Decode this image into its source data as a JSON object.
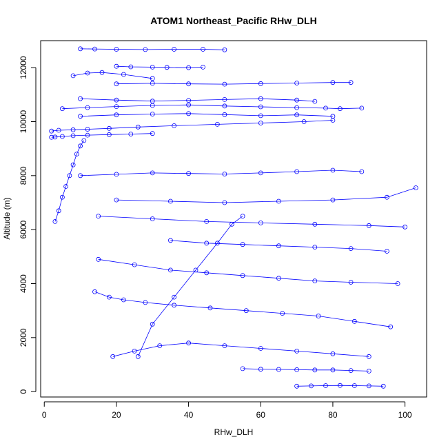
{
  "chart_data": {
    "type": "scatter",
    "title": "ATOM1 Northeast_Pacific RHw_DLH",
    "xlabel": "RHw_DLH",
    "ylabel": "Altitude (m)",
    "xlim": [
      -1,
      106
    ],
    "ylim": [
      -200,
      13000
    ],
    "x_ticks": [
      0,
      20,
      40,
      60,
      80,
      100
    ],
    "y_ticks": [
      0,
      2000,
      4000,
      6000,
      8000,
      10000,
      12000
    ],
    "x_tick_labels": [
      "0",
      "20",
      "40",
      "60",
      "80",
      "100"
    ],
    "y_tick_labels": [
      "0",
      "2000",
      "4000",
      "6000",
      "8000",
      "10000",
      "12000"
    ],
    "grid": false,
    "legend": "none",
    "series_color": "#0000ff",
    "marker": "open-circle",
    "connected": true,
    "series": [
      {
        "x": [
          10,
          14,
          20,
          28,
          36,
          44,
          50
        ],
        "y": [
          12700,
          12690,
          12680,
          12670,
          12680,
          12680,
          12660
        ]
      },
      {
        "x": [
          20,
          24,
          30,
          34,
          40,
          44
        ],
        "y": [
          12050,
          12030,
          12020,
          12010,
          12000,
          12020
        ]
      },
      {
        "x": [
          8,
          12,
          16,
          22,
          30
        ],
        "y": [
          11700,
          11800,
          11820,
          11750,
          11600
        ]
      },
      {
        "x": [
          20,
          30,
          40,
          50,
          60,
          70,
          80,
          85
        ],
        "y": [
          11400,
          11420,
          11400,
          11390,
          11410,
          11430,
          11450,
          11450
        ]
      },
      {
        "x": [
          10,
          20,
          30,
          40,
          50,
          60,
          70,
          75
        ],
        "y": [
          10850,
          10800,
          10760,
          10790,
          10820,
          10850,
          10800,
          10750
        ]
      },
      {
        "x": [
          5,
          12,
          20,
          30,
          40,
          50,
          60,
          70,
          78,
          82,
          88
        ],
        "y": [
          10480,
          10520,
          10560,
          10600,
          10620,
          10580,
          10550,
          10520,
          10500,
          10480,
          10500
        ]
      },
      {
        "x": [
          10,
          20,
          30,
          40,
          50,
          60,
          70,
          80
        ],
        "y": [
          10200,
          10250,
          10280,
          10300,
          10260,
          10220,
          10250,
          10200
        ]
      },
      {
        "x": [
          2,
          4,
          8,
          12,
          18,
          26,
          36,
          48,
          60,
          72,
          80
        ],
        "y": [
          9650,
          9680,
          9700,
          9720,
          9750,
          9800,
          9850,
          9900,
          9950,
          10000,
          10050
        ]
      },
      {
        "x": [
          2,
          3,
          5,
          8,
          12,
          18,
          24,
          30
        ],
        "y": [
          9420,
          9430,
          9450,
          9480,
          9500,
          9520,
          9540,
          9560
        ]
      },
      {
        "x": [
          3,
          4,
          5,
          6,
          7,
          8,
          9,
          10,
          11
        ],
        "y": [
          6300,
          6700,
          7200,
          7600,
          8000,
          8400,
          8800,
          9100,
          9300
        ]
      },
      {
        "x": [
          10,
          20,
          30,
          40,
          50,
          60,
          70,
          80,
          88
        ],
        "y": [
          8000,
          8050,
          8100,
          8080,
          8060,
          8100,
          8150,
          8200,
          8150
        ]
      },
      {
        "x": [
          20,
          35,
          50,
          65,
          80,
          95,
          103
        ],
        "y": [
          7100,
          7050,
          7000,
          7050,
          7100,
          7200,
          7550
        ]
      },
      {
        "x": [
          15,
          30,
          45,
          60,
          75,
          90,
          100
        ],
        "y": [
          6500,
          6400,
          6300,
          6250,
          6200,
          6150,
          6100
        ]
      },
      {
        "x": [
          35,
          45,
          55,
          65,
          75,
          85,
          95
        ],
        "y": [
          5600,
          5500,
          5450,
          5400,
          5350,
          5300,
          5200
        ]
      },
      {
        "x": [
          15,
          25,
          35,
          45,
          55,
          65,
          75,
          85,
          98
        ],
        "y": [
          4900,
          4700,
          4500,
          4400,
          4300,
          4200,
          4100,
          4050,
          4000
        ]
      },
      {
        "x": [
          14,
          18,
          22,
          28,
          36,
          46,
          56,
          66,
          76,
          86,
          96
        ],
        "y": [
          3700,
          3500,
          3400,
          3300,
          3200,
          3100,
          3000,
          2900,
          2800,
          2600,
          2400
        ]
      },
      {
        "x": [
          19,
          25,
          32,
          40,
          50,
          60,
          70,
          80,
          90
        ],
        "y": [
          1300,
          1500,
          1700,
          1800,
          1700,
          1600,
          1500,
          1400,
          1300
        ]
      },
      {
        "x": [
          55,
          60,
          65,
          70,
          75,
          80,
          85,
          90
        ],
        "y": [
          850,
          830,
          820,
          810,
          800,
          800,
          780,
          760
        ]
      },
      {
        "x": [
          70,
          74,
          78,
          82,
          86,
          90,
          94
        ],
        "y": [
          200,
          210,
          220,
          230,
          220,
          210,
          200
        ]
      },
      {
        "x": [
          26,
          30,
          36,
          42,
          48,
          52,
          55
        ],
        "y": [
          1300,
          2500,
          3500,
          4500,
          5500,
          6200,
          6500
        ]
      }
    ]
  }
}
